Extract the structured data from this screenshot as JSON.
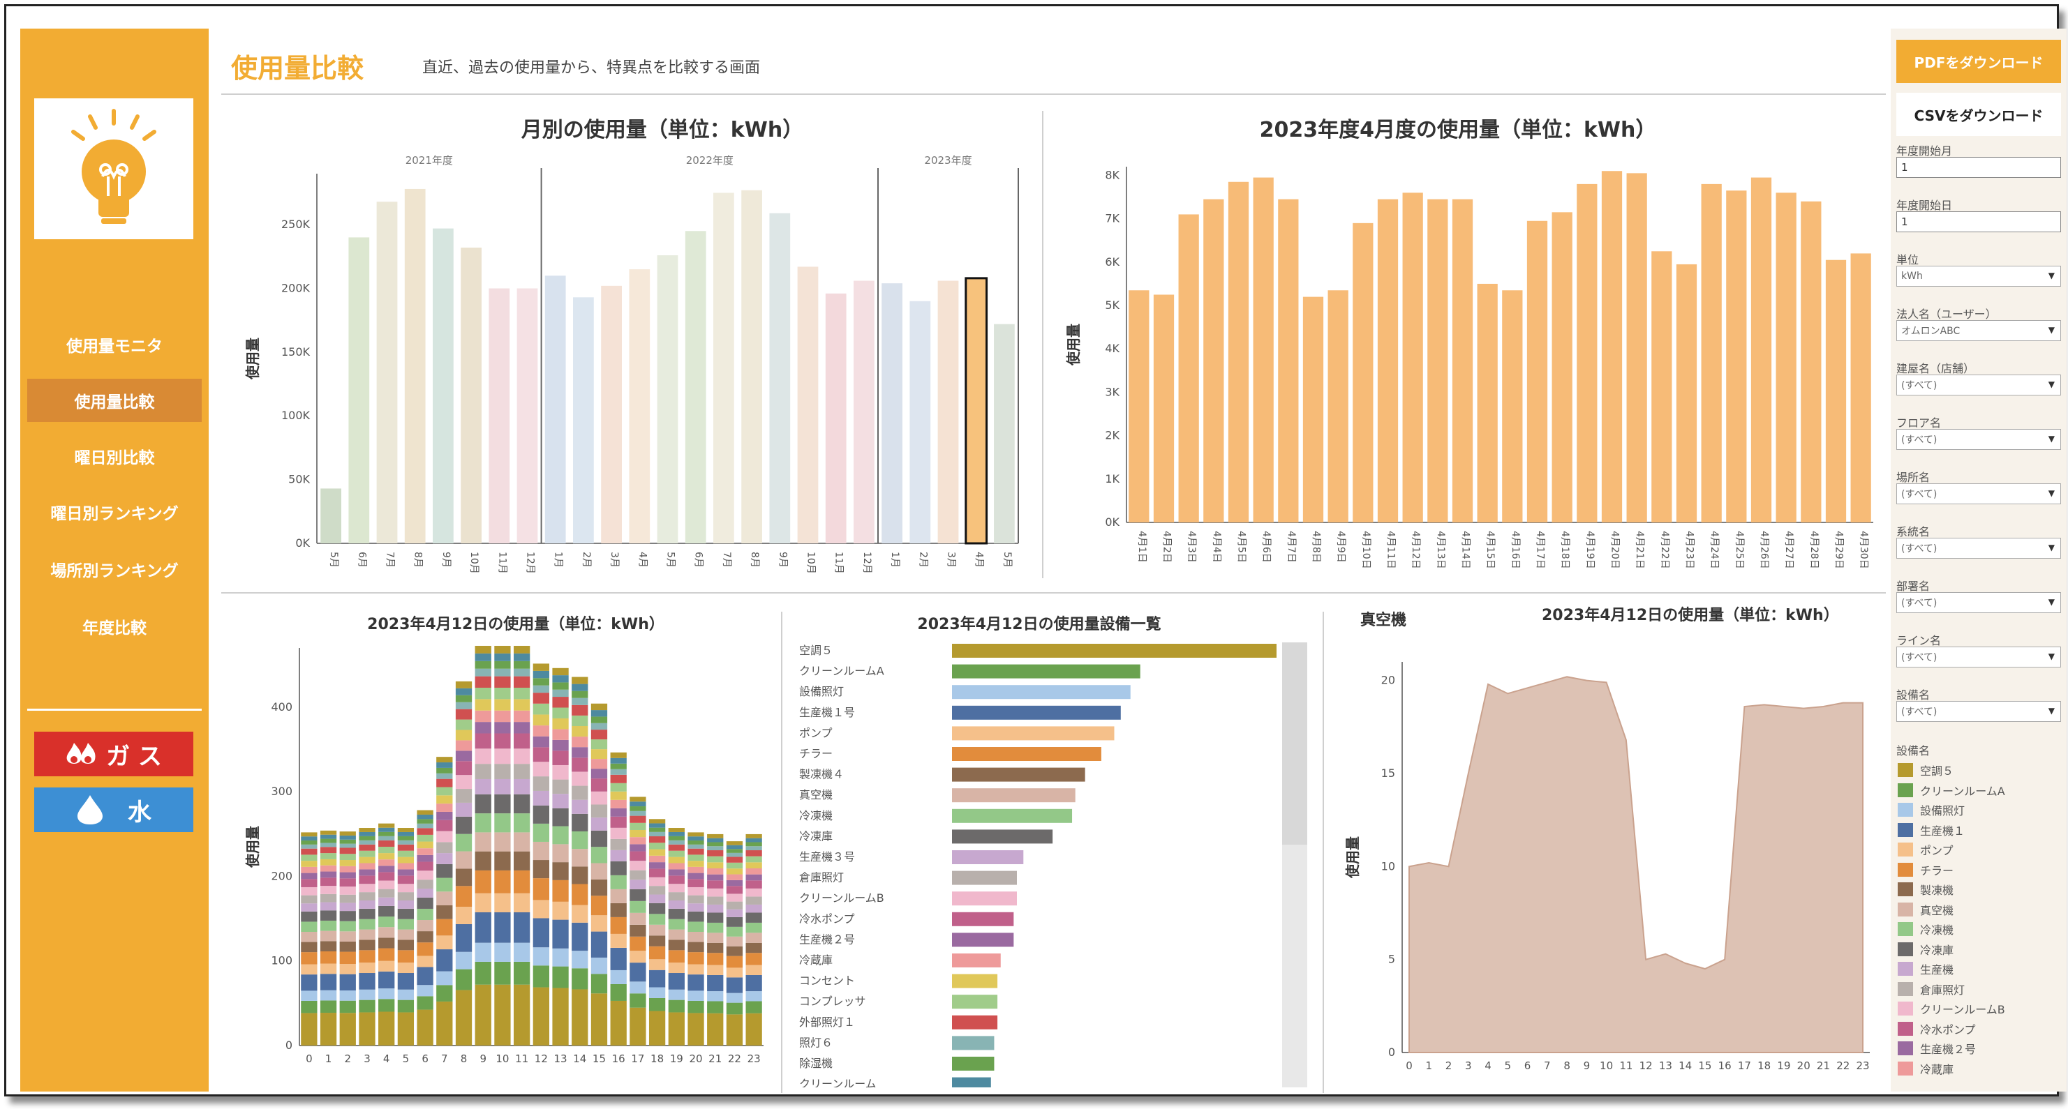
{
  "sidebar": {
    "items": [
      {
        "label": "使用量モニタ",
        "active": false
      },
      {
        "label": "使用量比較",
        "active": true
      },
      {
        "label": "曜日別比較",
        "active": false
      },
      {
        "label": "曜日別ランキング",
        "active": false
      },
      {
        "label": "場所別ランキング",
        "active": false
      },
      {
        "label": "年度比較",
        "active": false
      }
    ],
    "gas_label": "ガ ス",
    "water_label": "水",
    "logo_icon": "lightbulb-icon"
  },
  "header": {
    "title": "使用量比較",
    "description": "直近、過去の使用量から、特異点を比較する画面"
  },
  "right_panel": {
    "pdf_label": "PDFをダウンロード",
    "csv_label": "CSVをダウンロード",
    "filters": [
      {
        "label": "年度開始月",
        "value": "1",
        "kind": "input"
      },
      {
        "label": "年度開始日",
        "value": "1",
        "kind": "input"
      },
      {
        "label": "単位",
        "value": "kWh",
        "kind": "select"
      },
      {
        "label": "法人名（ユーザー）",
        "value": "オムロンABC",
        "kind": "select"
      },
      {
        "label": "建屋名（店舗）",
        "value": "(すべて)",
        "kind": "select"
      },
      {
        "label": "フロア名",
        "value": "(すべて)",
        "kind": "select"
      },
      {
        "label": "場所名",
        "value": "(すべて)",
        "kind": "select"
      },
      {
        "label": "系統名",
        "value": "(すべて)",
        "kind": "select"
      },
      {
        "label": "部署名",
        "value": "(すべて)",
        "kind": "select"
      },
      {
        "label": "ライン名",
        "value": "(すべて)",
        "kind": "select"
      },
      {
        "label": "設備名",
        "value": "(すべて)",
        "kind": "select"
      }
    ],
    "legend_title": "設備名",
    "legend": [
      {
        "label": "空調５",
        "color": "#b59a2e"
      },
      {
        "label": "クリーンルームA",
        "color": "#6aa24f"
      },
      {
        "label": "設備照灯",
        "color": "#a8c8e8"
      },
      {
        "label": "生産機１",
        "color": "#4e6fa2"
      },
      {
        "label": "ポンプ",
        "color": "#f5c08a"
      },
      {
        "label": "チラー",
        "color": "#e28c3c"
      },
      {
        "label": "製凍機",
        "color": "#8c6a4e"
      },
      {
        "label": "真空機",
        "color": "#d8b4a6"
      },
      {
        "label": "冷凍機",
        "color": "#93c888"
      },
      {
        "label": "冷凍庫",
        "color": "#6c6a6a"
      },
      {
        "label": "生産機",
        "color": "#c7a8cf"
      },
      {
        "label": "倉庫照灯",
        "color": "#b8b0ac"
      },
      {
        "label": "クリーンルームB",
        "color": "#f0b8cc"
      },
      {
        "label": "冷水ポンプ",
        "color": "#c0608a"
      },
      {
        "label": "生産機２号",
        "color": "#9a6aa0"
      },
      {
        "label": "冷蔵庫",
        "color": "#ee9a9a"
      }
    ]
  },
  "chart_data": [
    {
      "type": "bar",
      "title": "月別の使用量（単位：kWh）",
      "ylabel": "使用量",
      "ylim": [
        0,
        290000
      ],
      "yticks": [
        "0K",
        "50K",
        "100K",
        "150K",
        "200K",
        "250K"
      ],
      "groups": [
        {
          "label": "2021年度",
          "count": 8
        },
        {
          "label": "2022年度",
          "count": 12
        },
        {
          "label": "2023年度",
          "count": 5
        }
      ],
      "categories": [
        "5月",
        "6月",
        "7月",
        "8月",
        "9月",
        "10月",
        "11月",
        "12月",
        "1月",
        "2月",
        "3月",
        "4月",
        "5月",
        "6月",
        "7月",
        "8月",
        "9月",
        "10月",
        "11月",
        "12月",
        "1月",
        "2月",
        "3月",
        "4月",
        "5月"
      ],
      "values": [
        43000,
        240000,
        268000,
        278000,
        247000,
        232000,
        200000,
        200000,
        210000,
        193000,
        202000,
        215000,
        226000,
        245000,
        275000,
        277000,
        259000,
        217000,
        196000,
        206000,
        204000,
        190000,
        206000,
        208000,
        172000
      ],
      "colors": [
        "#cfdcc8",
        "#dce7d0",
        "#ece8d8",
        "#efe4cf",
        "#d6e5df",
        "#ebe2cf",
        "#f3dde0",
        "#f5e1e4",
        "#d8e2ee",
        "#dce6f0",
        "#f5e2d6",
        "#f6e8d9",
        "#e7ecde",
        "#dfe9d6",
        "#f0ecde",
        "#efe9d9",
        "#dde6e6",
        "#f4e3d6",
        "#f3d9dc",
        "#f4dfe2",
        "#d9e1ec",
        "#dde5ef",
        "#f5e2d3",
        "#f7c27c",
        "#dbe3da"
      ],
      "highlight_index": 23
    },
    {
      "type": "bar",
      "title": "2023年度4月度の使用量（単位：kWh）",
      "ylabel": "使用量",
      "ylim": [
        0,
        8200
      ],
      "yticks": [
        "0K",
        "1K",
        "2K",
        "3K",
        "4K",
        "5K",
        "6K",
        "7K",
        "8K"
      ],
      "categories": [
        "4月1日",
        "4月2日",
        "4月3日",
        "4月4日",
        "4月5日",
        "4月6日",
        "4月7日",
        "4月8日",
        "4月9日",
        "4月10日",
        "4月11日",
        "4月12日",
        "4月13日",
        "4月14日",
        "4月15日",
        "4月16日",
        "4月17日",
        "4月18日",
        "4月19日",
        "4月20日",
        "4月21日",
        "4月22日",
        "4月23日",
        "4月24日",
        "4月25日",
        "4月26日",
        "4月27日",
        "4月28日",
        "4月29日",
        "4月30日"
      ],
      "values": [
        5350,
        5250,
        7100,
        7450,
        7850,
        7950,
        7450,
        5200,
        5350,
        6900,
        7450,
        7600,
        7450,
        7450,
        5500,
        5350,
        6950,
        7150,
        7800,
        8100,
        8050,
        6250,
        5950,
        7800,
        7650,
        7950,
        7600,
        7400,
        6050,
        6200
      ],
      "color": "#f7bb77"
    },
    {
      "type": "bar",
      "stacked": true,
      "title": "2023年4月12日の使用量（単位：kWh）",
      "ylabel": "使用量",
      "ylim": [
        0,
        470
      ],
      "yticks": [
        "0",
        "100",
        "200",
        "300",
        "400"
      ],
      "categories": [
        "0",
        "1",
        "2",
        "3",
        "4",
        "5",
        "6",
        "7",
        "8",
        "9",
        "10",
        "11",
        "12",
        "13",
        "14",
        "15",
        "16",
        "17",
        "18",
        "19",
        "20",
        "21",
        "22",
        "23"
      ],
      "values": [
        240,
        242,
        241,
        245,
        250,
        245,
        265,
        325,
        410,
        450,
        450,
        450,
        430,
        425,
        415,
        385,
        330,
        280,
        255,
        245,
        240,
        238,
        230,
        238
      ]
    },
    {
      "type": "bar",
      "orientation": "horizontal",
      "title": "2023年4月12日の使用量設備一覧",
      "categories": [
        "空調５",
        "クリーンルームA",
        "設備照灯",
        "生産機１号",
        "ポンプ",
        "チラー",
        "製凍機４",
        "真空機",
        "冷凍機",
        "冷凍庫",
        "生産機３号",
        "倉庫照灯",
        "クリーンルームB",
        "冷水ポンプ",
        "生産機２号",
        "冷蔵庫",
        "コンセント",
        "コンプレッサ",
        "外部照灯１",
        "照灯６",
        "除湿機",
        "クリーンルーム"
      ],
      "values": [
        100,
        58,
        55,
        52,
        50,
        46,
        41,
        38,
        37,
        31,
        22,
        20,
        20,
        19,
        19,
        15,
        14,
        14,
        14,
        13,
        13,
        12
      ],
      "colors": [
        "#b59a2e",
        "#6aa24f",
        "#a8c8e8",
        "#4e6fa2",
        "#f5c08a",
        "#e28c3c",
        "#8c6a4e",
        "#d8b4a6",
        "#93c888",
        "#6c6a6a",
        "#c7a8cf",
        "#b8b0ac",
        "#f0b8cc",
        "#c0608a",
        "#9a6aa0",
        "#ee9a9a",
        "#e0c85a",
        "#a0cc8a",
        "#d05050",
        "#88b4b4",
        "#6aa24f",
        "#4e8aa0"
      ]
    },
    {
      "type": "area",
      "title": "2023年4月12日の使用量（単位：kWh）",
      "subtitle": "真空機",
      "ylabel": "使用量",
      "ylim": [
        0,
        21
      ],
      "yticks": [
        "0",
        "5",
        "10",
        "15",
        "20"
      ],
      "categories": [
        "0",
        "1",
        "2",
        "3",
        "4",
        "5",
        "6",
        "7",
        "8",
        "9",
        "10",
        "11",
        "12",
        "13",
        "14",
        "15",
        "16",
        "17",
        "18",
        "19",
        "20",
        "21",
        "22",
        "23"
      ],
      "values": [
        10,
        10.2,
        10,
        15,
        19.8,
        19.3,
        19.6,
        19.9,
        20.2,
        20,
        19.9,
        16.8,
        5,
        5.3,
        4.8,
        4.5,
        5,
        18.6,
        18.7,
        18.6,
        18.5,
        18.6,
        18.8,
        18.8
      ],
      "color": "#ddc2b4"
    }
  ]
}
